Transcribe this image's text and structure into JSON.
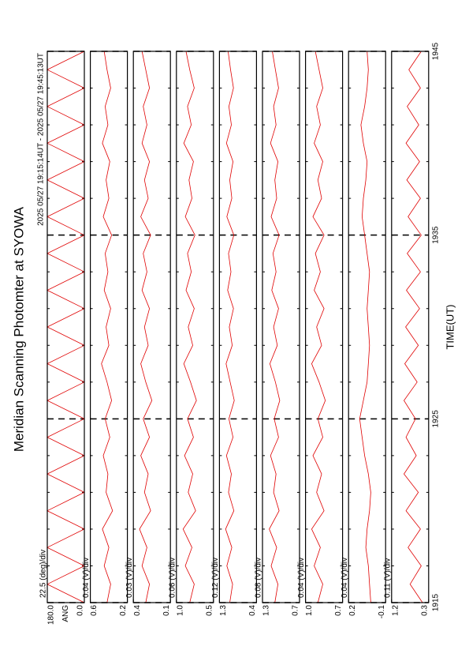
{
  "chart_data": {
    "type": "line",
    "title": "Meridian Scanning Photomter at SYOWA",
    "subtitle": "2025 05/27 19:15:14UT - 2025 05/27 19:45:13UT",
    "x_label": "TIME(UT)",
    "xlim": [
      1915,
      1945
    ],
    "xticks": [
      1915,
      1925,
      1935,
      1945
    ],
    "color": "#e00000",
    "x": [
      1915,
      1916,
      1917,
      1918,
      1919,
      1920,
      1921,
      1922,
      1923,
      1924,
      1925,
      1926,
      1927,
      1928,
      1929,
      1930,
      1931,
      1932,
      1933,
      1934,
      1935,
      1936,
      1937,
      1938,
      1939,
      1940,
      1941,
      1942,
      1943,
      1944,
      1945
    ],
    "panels": [
      {
        "label": "22.5 (deg)/div",
        "ylabel": "ANG",
        "ylim": [
          0,
          180
        ],
        "yticks": [
          {
            "value": 180,
            "label": "180.0"
          },
          {
            "value": 0,
            "label": "0.0"
          }
        ],
        "values": [
          0,
          180,
          0,
          180,
          0,
          180,
          0,
          180,
          0,
          180,
          0,
          180,
          0,
          180,
          0,
          180,
          0,
          180,
          0,
          180,
          0,
          180,
          0,
          180,
          0,
          180,
          0,
          180,
          0,
          180,
          0
        ]
      },
      {
        "label": "0.04 (V)/div",
        "ylim": [
          0.2,
          0.6
        ],
        "yticks": [
          0.6,
          0.2
        ],
        "values": [
          0.42,
          0.38,
          0.45,
          0.4,
          0.47,
          0.36,
          0.43,
          0.41,
          0.46,
          0.39,
          0.44,
          0.37,
          0.42,
          0.48,
          0.4,
          0.43,
          0.38,
          0.45,
          0.41,
          0.44,
          0.37,
          0.46,
          0.4,
          0.43,
          0.39,
          0.47,
          0.41,
          0.44,
          0.38,
          0.42,
          0.45
        ]
      },
      {
        "label": "0.03 (V)/div",
        "ylim": [
          0.1,
          0.4
        ],
        "yticks": [
          0.4,
          0.1
        ],
        "values": [
          0.3,
          0.27,
          0.33,
          0.29,
          0.35,
          0.26,
          0.31,
          0.28,
          0.34,
          0.27,
          0.32,
          0.25,
          0.3,
          0.34,
          0.28,
          0.31,
          0.27,
          0.33,
          0.29,
          0.32,
          0.26,
          0.34,
          0.28,
          0.31,
          0.27,
          0.33,
          0.29,
          0.32,
          0.27,
          0.3,
          0.33
        ]
      },
      {
        "label": "0.06 (V)/div",
        "ylim": [
          0.5,
          1.0
        ],
        "yticks": [
          {
            "value": 1,
            "label": "1.0"
          },
          0.5
        ],
        "values": [
          0.82,
          0.76,
          0.88,
          0.79,
          0.91,
          0.74,
          0.84,
          0.78,
          0.89,
          0.77,
          0.85,
          0.73,
          0.81,
          0.9,
          0.78,
          0.84,
          0.76,
          0.87,
          0.8,
          0.85,
          0.75,
          0.88,
          0.79,
          0.83,
          0.77,
          0.9,
          0.8,
          0.85,
          0.76,
          0.82,
          0.87
        ]
      },
      {
        "label": "0.12 (V)/div",
        "ylim": [
          0.4,
          1.3
        ],
        "yticks": [
          1.3,
          0.4
        ],
        "values": [
          1.05,
          0.98,
          1.12,
          1.0,
          1.15,
          0.95,
          1.08,
          1.01,
          1.13,
          0.97,
          1.07,
          0.94,
          1.04,
          1.14,
          0.99,
          1.06,
          0.96,
          1.1,
          1.02,
          1.08,
          0.95,
          1.12,
          1.0,
          1.05,
          0.97,
          1.13,
          1.01,
          1.07,
          0.96,
          1.03,
          1.09
        ]
      },
      {
        "label": "0.08 (V)/div",
        "ylim": [
          0.7,
          1.3
        ],
        "yticks": [
          1.3,
          0.7
        ],
        "values": [
          1.1,
          1.05,
          1.16,
          1.07,
          1.19,
          1.03,
          1.12,
          1.08,
          1.17,
          1.04,
          1.11,
          1.02,
          1.09,
          1.18,
          1.06,
          1.12,
          1.04,
          1.15,
          1.08,
          1.13,
          1.03,
          1.16,
          1.07,
          1.1,
          1.05,
          1.17,
          1.08,
          1.12,
          1.04,
          1.09,
          1.14
        ]
      },
      {
        "label": "0.04 (V)/div",
        "ylim": [
          0.7,
          1.0
        ],
        "yticks": [
          {
            "value": 1,
            "label": "1.0"
          },
          0.7
        ],
        "values": [
          0.9,
          0.86,
          0.93,
          0.88,
          0.95,
          0.85,
          0.91,
          0.87,
          0.94,
          0.86,
          0.9,
          0.84,
          0.89,
          0.95,
          0.87,
          0.91,
          0.85,
          0.93,
          0.88,
          0.92,
          0.85,
          0.94,
          0.87,
          0.9,
          0.86,
          0.93,
          0.88,
          0.91,
          0.86,
          0.89,
          0.92
        ]
      },
      {
        "label": "0.04 (V)/div",
        "ylim": [
          -0.1,
          0.2
        ],
        "yticks": [
          0.2,
          -0.1
        ],
        "values": [
          0.02,
          0.03,
          0.04,
          0.06,
          0.05,
          0.03,
          0.02,
          0.04,
          0.07,
          0.09,
          0.11,
          0.08,
          0.05,
          0.04,
          0.03,
          0.04,
          0.05,
          0.04,
          0.03,
          0.05,
          0.07,
          0.09,
          0.08,
          0.06,
          0.05,
          0.08,
          0.1,
          0.07,
          0.05,
          0.04,
          0.05
        ]
      },
      {
        "label": "0.11 (V)/div",
        "ylim": [
          0.3,
          1.2
        ],
        "yticks": [
          1.2,
          0.3
        ],
        "values": [
          0.45,
          0.75,
          0.48,
          0.8,
          0.5,
          0.85,
          0.55,
          0.9,
          0.6,
          0.85,
          0.62,
          0.9,
          0.58,
          0.88,
          0.55,
          0.86,
          0.52,
          0.84,
          0.5,
          0.82,
          0.48,
          0.8,
          0.5,
          0.83,
          0.52,
          0.85,
          0.54,
          0.82,
          0.5,
          0.78,
          0.48
        ]
      }
    ]
  }
}
